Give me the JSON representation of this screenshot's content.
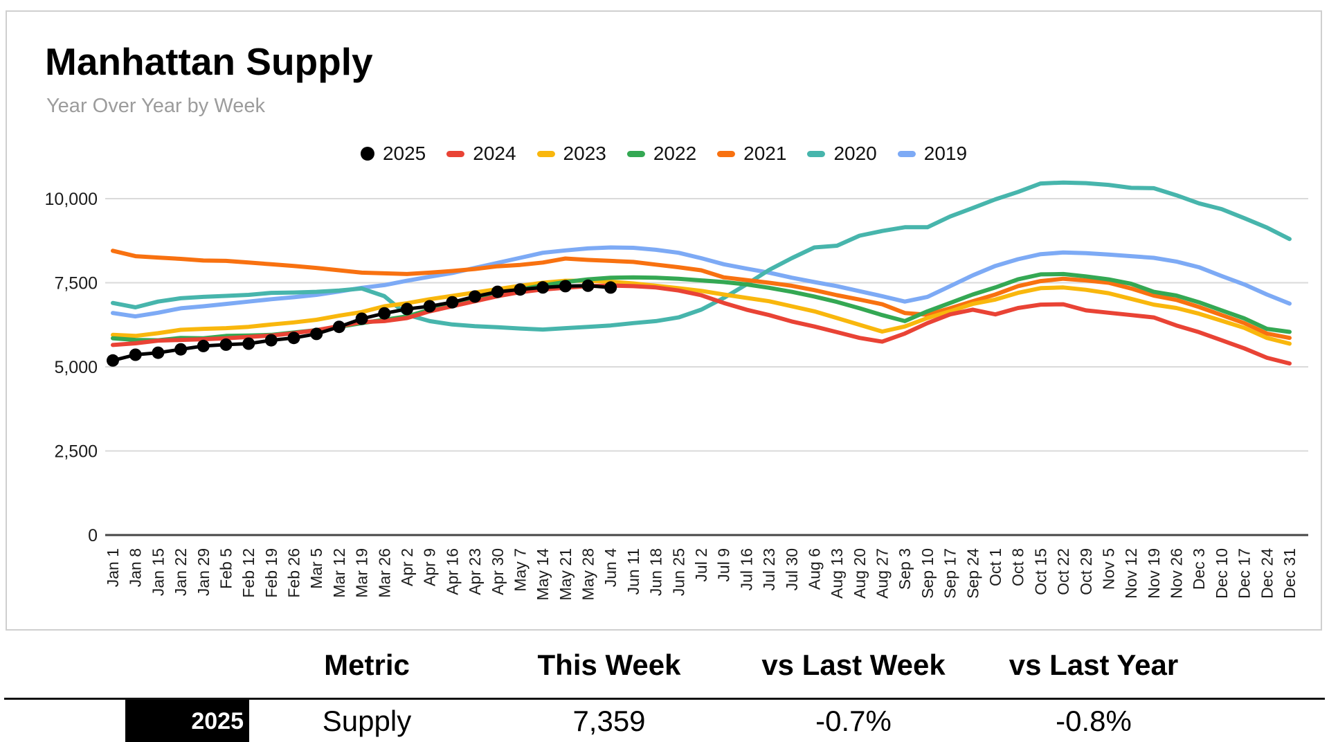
{
  "card": {
    "title": "Manhattan Supply",
    "subtitle": "Year Over Year by Week"
  },
  "chart_data": {
    "type": "line",
    "title": "Manhattan Supply",
    "subtitle": "Year Over Year by Week",
    "xlabel": "",
    "ylabel": "",
    "ylim": [
      0,
      10500
    ],
    "yticks": [
      0,
      2500,
      5000,
      7500,
      10000
    ],
    "ytick_labels": [
      "0",
      "2,500",
      "5,000",
      "7,500",
      "10,000"
    ],
    "grid": "horizontal",
    "legend_position": "top-center",
    "colors": {
      "gridline": "#dadada",
      "baseline": "#444444",
      "axis_text": "#1c1c1c"
    },
    "categories": [
      "Jan 1",
      "Jan 8",
      "Jan 15",
      "Jan 22",
      "Jan 29",
      "Feb 5",
      "Feb 12",
      "Feb 19",
      "Feb 26",
      "Mar 5",
      "Mar 12",
      "Mar 19",
      "Mar 26",
      "Apr 2",
      "Apr 9",
      "Apr 16",
      "Apr 23",
      "Apr 30",
      "May 7",
      "May 14",
      "May 21",
      "May 28",
      "Jun 4",
      "Jun 11",
      "Jun 18",
      "Jun 25",
      "Jul 2",
      "Jul 9",
      "Jul 16",
      "Jul 23",
      "Jul 30",
      "Aug 6",
      "Aug 13",
      "Aug 20",
      "Aug 27",
      "Sep 3",
      "Sep 10",
      "Sep 17",
      "Sep 24",
      "Oct 1",
      "Oct 8",
      "Oct 15",
      "Oct 22",
      "Oct 29",
      "Nov 5",
      "Nov 12",
      "Nov 19",
      "Nov 26",
      "Dec 3",
      "Dec 10",
      "Dec 17",
      "Dec 24",
      "Dec 31"
    ],
    "series": [
      {
        "name": "2025",
        "color": "#000000",
        "marker": "circle",
        "values": [
          5190,
          5360,
          5420,
          5520,
          5620,
          5660,
          5690,
          5790,
          5860,
          5980,
          6190,
          6430,
          6590,
          6720,
          6800,
          6920,
          7090,
          7230,
          7300,
          7360,
          7400,
          7411,
          7359
        ]
      },
      {
        "name": "2024",
        "color": "#e94335",
        "marker": "dash",
        "values": [
          5650,
          5700,
          5780,
          5800,
          5820,
          5850,
          5890,
          5930,
          6000,
          6090,
          6210,
          6330,
          6360,
          6450,
          6650,
          6800,
          6950,
          7100,
          7220,
          7300,
          7350,
          7400,
          7418,
          7400,
          7360,
          7270,
          7130,
          6900,
          6700,
          6540,
          6350,
          6200,
          6030,
          5860,
          5750,
          5990,
          6300,
          6560,
          6700,
          6560,
          6750,
          6850,
          6860,
          6680,
          6610,
          6540,
          6470,
          6230,
          6030,
          5790,
          5550,
          5270,
          5100
        ]
      },
      {
        "name": "2023",
        "color": "#f9b70d",
        "marker": "dash",
        "values": [
          5950,
          5920,
          6000,
          6100,
          6130,
          6150,
          6190,
          6260,
          6320,
          6400,
          6520,
          6630,
          6800,
          6890,
          7010,
          7110,
          7210,
          7310,
          7410,
          7500,
          7560,
          7560,
          7530,
          7480,
          7410,
          7340,
          7260,
          7150,
          7050,
          6950,
          6800,
          6650,
          6450,
          6250,
          6050,
          6200,
          6450,
          6650,
          6870,
          7000,
          7200,
          7340,
          7360,
          7290,
          7190,
          7020,
          6850,
          6750,
          6580,
          6370,
          6160,
          5860,
          5690
        ]
      },
      {
        "name": "2022",
        "color": "#34a853",
        "marker": "dash",
        "values": [
          5850,
          5800,
          5790,
          5860,
          5850,
          5920,
          5930,
          5950,
          6020,
          6090,
          6190,
          6300,
          6400,
          6500,
          6700,
          6850,
          7000,
          7150,
          7300,
          7420,
          7520,
          7600,
          7650,
          7660,
          7650,
          7620,
          7570,
          7520,
          7450,
          7350,
          7230,
          7090,
          6930,
          6740,
          6540,
          6360,
          6650,
          6900,
          7150,
          7360,
          7600,
          7750,
          7760,
          7690,
          7600,
          7470,
          7230,
          7120,
          6920,
          6680,
          6440,
          6130,
          6040
        ]
      },
      {
        "name": "2021",
        "color": "#f87110",
        "marker": "dash",
        "values": [
          8450,
          8290,
          8250,
          8210,
          8160,
          8150,
          8100,
          8050,
          8000,
          7940,
          7870,
          7800,
          7780,
          7760,
          7800,
          7850,
          7910,
          7990,
          8030,
          8100,
          8220,
          8180,
          8150,
          8120,
          8040,
          7960,
          7870,
          7660,
          7580,
          7500,
          7410,
          7280,
          7130,
          7000,
          6860,
          6600,
          6550,
          6740,
          6950,
          7150,
          7400,
          7550,
          7620,
          7570,
          7500,
          7330,
          7120,
          6990,
          6780,
          6540,
          6300,
          5990,
          5860
        ]
      },
      {
        "name": "2020",
        "color": "#47b5ac",
        "marker": "dash",
        "values": [
          6900,
          6770,
          6940,
          7040,
          7080,
          7110,
          7140,
          7200,
          7210,
          7230,
          7270,
          7330,
          7100,
          6550,
          6360,
          6260,
          6210,
          6180,
          6140,
          6110,
          6150,
          6190,
          6230,
          6300,
          6360,
          6470,
          6700,
          7050,
          7450,
          7880,
          8230,
          8550,
          8600,
          8900,
          9040,
          9150,
          9150,
          9470,
          9720,
          9980,
          10200,
          10450,
          10480,
          10460,
          10410,
          10320,
          10310,
          10100,
          9860,
          9690,
          9420,
          9140,
          8800
        ]
      },
      {
        "name": "2019",
        "color": "#7daaf5",
        "marker": "dash",
        "values": [
          6600,
          6500,
          6610,
          6740,
          6800,
          6870,
          6940,
          7010,
          7070,
          7140,
          7240,
          7350,
          7430,
          7560,
          7680,
          7790,
          7940,
          8090,
          8240,
          8390,
          8460,
          8520,
          8550,
          8540,
          8480,
          8390,
          8230,
          8050,
          7920,
          7800,
          7650,
          7520,
          7400,
          7250,
          7100,
          6940,
          7080,
          7400,
          7720,
          8000,
          8200,
          8350,
          8400,
          8380,
          8340,
          8290,
          8240,
          8130,
          7960,
          7700,
          7450,
          7150,
          6880
        ]
      }
    ],
    "draw_order": [
      "2019",
      "2020",
      "2021",
      "2023",
      "2022",
      "2024",
      "2025"
    ]
  },
  "table": {
    "headers": [
      "Metric",
      "This Week",
      "vs Last Week",
      "vs Last Year"
    ],
    "row": {
      "year": "2025",
      "metric": "Supply",
      "this_week": "7,359",
      "vs_last_week": "-0.7%",
      "vs_last_year": "-0.8%"
    }
  }
}
